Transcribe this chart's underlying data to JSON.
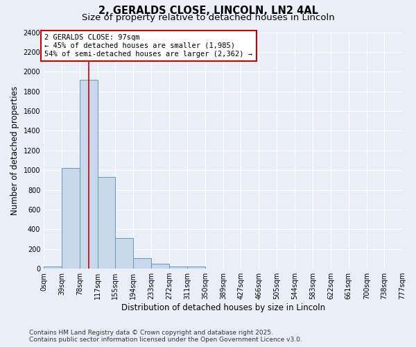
{
  "title_line1": "2, GERALDS CLOSE, LINCOLN, LN2 4AL",
  "title_line2": "Size of property relative to detached houses in Lincoln",
  "xlabel": "Distribution of detached houses by size in Lincoln",
  "ylabel": "Number of detached properties",
  "bin_edges": [
    0,
    39,
    78,
    117,
    155,
    194,
    233,
    272,
    311,
    350,
    389,
    427,
    466,
    505,
    544,
    583,
    622,
    661,
    700,
    738,
    777
  ],
  "bin_heights": [
    20,
    1025,
    1920,
    930,
    310,
    105,
    50,
    25,
    25,
    0,
    0,
    0,
    0,
    0,
    0,
    0,
    0,
    0,
    0,
    0
  ],
  "bar_color": "#c8d8ea",
  "bar_edge_color": "#6699bb",
  "bar_edge_width": 0.7,
  "property_size": 97,
  "property_line_color": "#cc0000",
  "annotation_text": "2 GERALDS CLOSE: 97sqm\n← 45% of detached houses are smaller (1,985)\n54% of semi-detached houses are larger (2,362) →",
  "annotation_box_color": "#ffffff",
  "annotation_box_edge_color": "#cc0000",
  "ylim": [
    0,
    2400
  ],
  "yticks": [
    0,
    200,
    400,
    600,
    800,
    1000,
    1200,
    1400,
    1600,
    1800,
    2000,
    2200,
    2400
  ],
  "tick_labels": [
    "0sqm",
    "39sqm",
    "78sqm",
    "117sqm",
    "155sqm",
    "194sqm",
    "233sqm",
    "272sqm",
    "311sqm",
    "350sqm",
    "389sqm",
    "427sqm",
    "466sqm",
    "505sqm",
    "544sqm",
    "583sqm",
    "622sqm",
    "661sqm",
    "700sqm",
    "738sqm",
    "777sqm"
  ],
  "background_color": "#eaeff7",
  "grid_color": "#ffffff",
  "footer_line1": "Contains HM Land Registry data © Crown copyright and database right 2025.",
  "footer_line2": "Contains public sector information licensed under the Open Government Licence v3.0.",
  "title_fontsize": 10.5,
  "subtitle_fontsize": 9.5,
  "axis_label_fontsize": 8.5,
  "tick_fontsize": 7,
  "annotation_fontsize": 7.5,
  "footer_fontsize": 6.5
}
